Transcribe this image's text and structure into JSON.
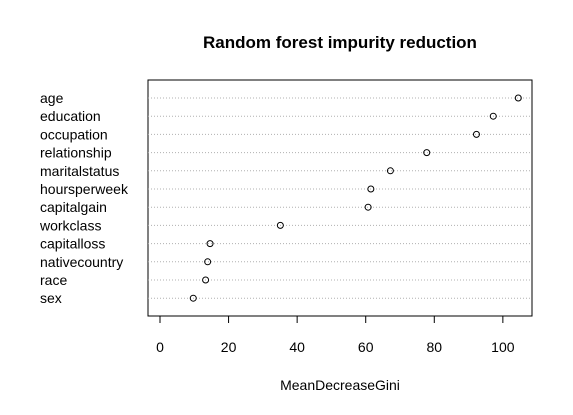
{
  "chart_data": {
    "type": "scatter",
    "title": "Random forest impurity reduction",
    "xlabel": "MeanDecreaseGini",
    "ylabel": "",
    "xlim": [
      -3.5,
      108.5
    ],
    "xticks": [
      0,
      20,
      40,
      60,
      80,
      100
    ],
    "grid": "horizontal dotted lines per category",
    "categories": [
      "age",
      "education",
      "occupation",
      "relationship",
      "maritalstatus",
      "hoursperweek",
      "capitalgain",
      "workclass",
      "capitalloss",
      "nativecountry",
      "race",
      "sex"
    ],
    "values": [
      104.5,
      97.2,
      92.3,
      77.8,
      67.2,
      61.5,
      60.7,
      35.1,
      14.6,
      13.9,
      13.3,
      9.7
    ]
  }
}
